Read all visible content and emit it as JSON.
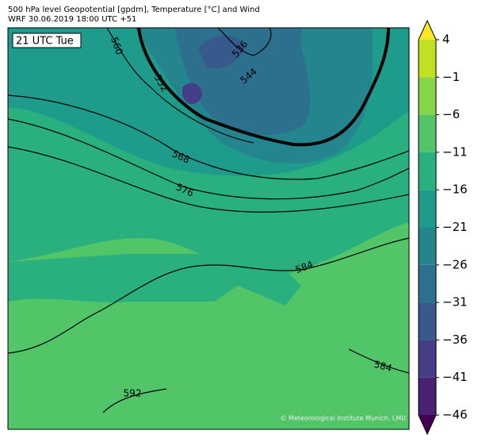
{
  "header": {
    "title_line1": "500 hPa level Geopotential [gpdm], Temperature [°C] and Wind",
    "title_line2": "WRF 30.06.2019 18:00 UTC +51"
  },
  "map": {
    "time_label": "21 UTC Tue",
    "contour_labels": [
      560,
      552,
      536,
      544,
      568,
      576,
      584,
      584,
      592
    ],
    "credit": "© Meteorological Institute Munich, LMU"
  },
  "colorbar": {
    "ticks": [
      4,
      {
        "value": -1,
        "label": "−1"
      },
      {
        "value": -6,
        "label": "−6"
      },
      {
        "value": -11,
        "label": "−11"
      },
      {
        "value": -16,
        "label": "−16"
      },
      {
        "value": -21,
        "label": "−21"
      },
      {
        "value": -26,
        "label": "−26"
      },
      {
        "value": -31,
        "label": "−31"
      },
      {
        "value": -36,
        "label": "−36"
      },
      {
        "value": -41,
        "label": "−41"
      },
      {
        "value": -46,
        "label": "−46"
      }
    ],
    "colors": [
      "#440154",
      "#482173",
      "#433e85",
      "#38598c",
      "#2d708e",
      "#25858e",
      "#1e9b8a",
      "#2ab07f",
      "#52c569",
      "#86d549",
      "#c2df23",
      "#fde725"
    ]
  }
}
